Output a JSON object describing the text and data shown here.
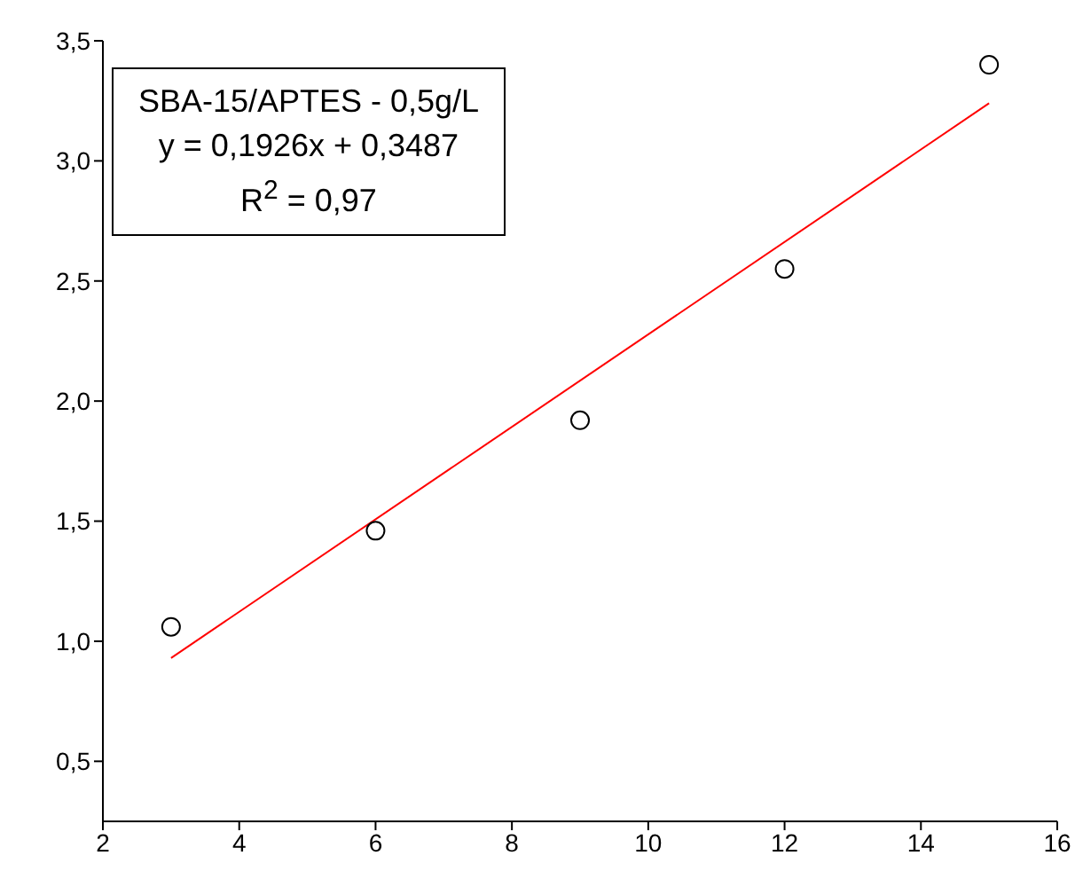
{
  "chart_data": {
    "type": "scatter",
    "x": [
      3,
      6,
      9,
      12,
      15
    ],
    "series": [
      {
        "marker": "circle",
        "color": "#000000",
        "values": [
          1.06,
          1.46,
          1.92,
          2.55,
          3.4
        ]
      },
      {
        "type": "line",
        "marker": "none",
        "color": "#ff0000",
        "x": [
          3,
          15
        ],
        "values": [
          0.93,
          3.24
        ]
      }
    ],
    "annotations": [
      "SBA-15/APTES - 0,5g/L",
      "y = 0,1926x + 0,3487",
      "R$^{2}$ = 0,97"
    ],
    "line_style": "solid",
    "grid": false,
    "legend": false,
    "xlim": [
      2,
      16
    ],
    "xticks": [
      2,
      4,
      6,
      8,
      10,
      12,
      14,
      16
    ],
    "ylim": [
      0.25,
      3.5
    ],
    "yticks": [
      {
        "value": 0.5,
        "label": "0,5"
      },
      {
        "value": 1,
        "label": "1,0"
      },
      {
        "value": 1.5,
        "label": "1,5"
      },
      {
        "value": 2,
        "label": "2,0"
      },
      {
        "value": 2.5,
        "label": "2,5"
      },
      {
        "value": 3,
        "label": "3,0"
      },
      {
        "value": 3.5,
        "label": "3,5"
      }
    ]
  }
}
